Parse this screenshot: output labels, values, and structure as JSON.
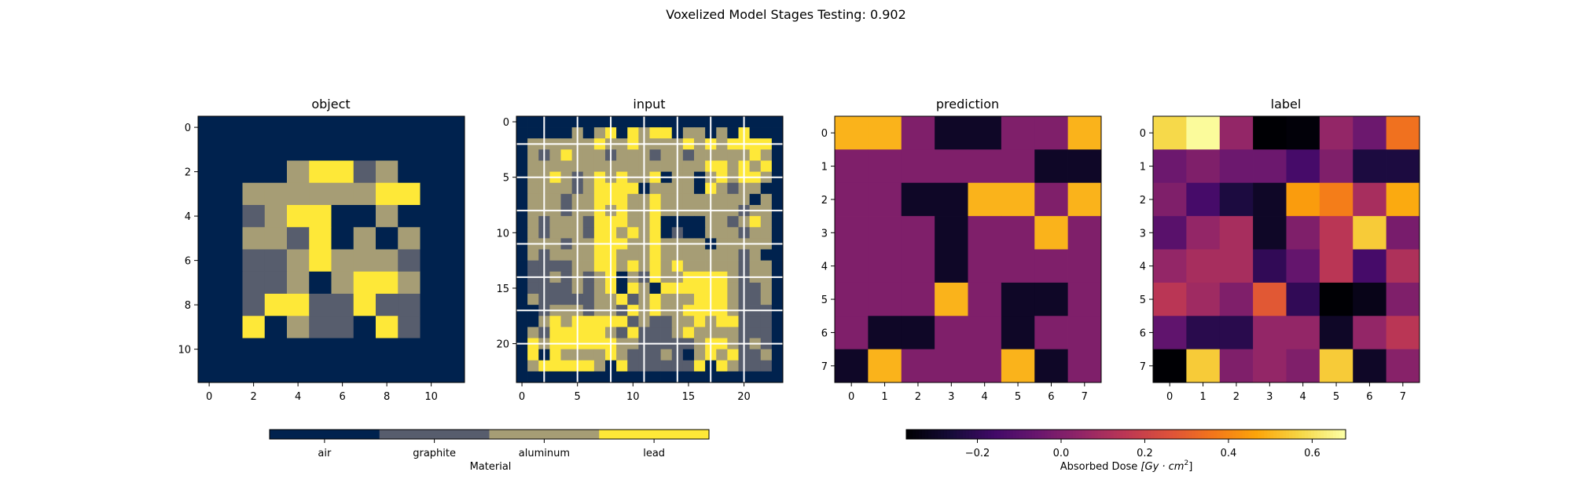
{
  "figure": {
    "suptitle": "Voxelized Model Stages Testing: 0.902"
  },
  "chart_data": [
    {
      "type": "heatmap",
      "title": "object",
      "rows": 12,
      "cols": 12,
      "xticks": [
        0,
        2,
        4,
        6,
        8,
        10
      ],
      "yticks": [
        0,
        2,
        4,
        6,
        8,
        10
      ],
      "colormap": "material",
      "values": [
        [
          0,
          0,
          0,
          0,
          0,
          0,
          0,
          0,
          0,
          0,
          0,
          0
        ],
        [
          0,
          0,
          0,
          0,
          0,
          0,
          0,
          0,
          0,
          0,
          0,
          0
        ],
        [
          0,
          0,
          0,
          0,
          2,
          3,
          3,
          1,
          2,
          0,
          0,
          0
        ],
        [
          0,
          0,
          2,
          2,
          2,
          2,
          2,
          2,
          3,
          3,
          0,
          0
        ],
        [
          0,
          0,
          1,
          2,
          3,
          3,
          0,
          0,
          2,
          0,
          0,
          0
        ],
        [
          0,
          0,
          2,
          2,
          1,
          3,
          0,
          2,
          0,
          2,
          0,
          0
        ],
        [
          0,
          0,
          1,
          1,
          2,
          3,
          2,
          2,
          2,
          1,
          0,
          0
        ],
        [
          0,
          0,
          1,
          1,
          2,
          0,
          2,
          3,
          3,
          2,
          0,
          0
        ],
        [
          0,
          0,
          1,
          3,
          3,
          1,
          1,
          3,
          1,
          1,
          0,
          0
        ],
        [
          0,
          0,
          3,
          0,
          2,
          1,
          1,
          0,
          3,
          1,
          0,
          0
        ],
        [
          0,
          0,
          0,
          0,
          0,
          0,
          0,
          0,
          0,
          0,
          0,
          0
        ],
        [
          0,
          0,
          0,
          0,
          0,
          0,
          0,
          0,
          0,
          0,
          0,
          0
        ]
      ]
    },
    {
      "type": "heatmap",
      "title": "input",
      "rows": 24,
      "cols": 24,
      "xticks": [
        0,
        5,
        10,
        15,
        20
      ],
      "yticks": [
        0,
        5,
        10,
        15,
        20
      ],
      "colormap": "material",
      "grid_every": 3,
      "values": [
        [
          0,
          0,
          0,
          0,
          0,
          0,
          0,
          0,
          0,
          0,
          0,
          0,
          0,
          0,
          0,
          0,
          0,
          0,
          0,
          0,
          0,
          0,
          0,
          0
        ],
        [
          0,
          0,
          0,
          0,
          0,
          2,
          0,
          2,
          3,
          0,
          3,
          2,
          3,
          3,
          0,
          2,
          2,
          0,
          2,
          0,
          3,
          0,
          0,
          0
        ],
        [
          0,
          2,
          2,
          2,
          2,
          2,
          2,
          3,
          2,
          2,
          3,
          2,
          2,
          2,
          2,
          3,
          2,
          3,
          2,
          3,
          3,
          3,
          3,
          0
        ],
        [
          0,
          2,
          1,
          2,
          3,
          2,
          2,
          2,
          1,
          2,
          2,
          2,
          1,
          2,
          2,
          1,
          2,
          2,
          2,
          2,
          2,
          3,
          2,
          0
        ],
        [
          0,
          2,
          2,
          2,
          2,
          2,
          2,
          2,
          2,
          2,
          2,
          2,
          2,
          2,
          2,
          2,
          2,
          3,
          3,
          2,
          3,
          2,
          3,
          0
        ],
        [
          0,
          2,
          2,
          3,
          2,
          1,
          2,
          3,
          2,
          3,
          2,
          2,
          3,
          0,
          2,
          2,
          0,
          2,
          3,
          2,
          3,
          3,
          2,
          0
        ],
        [
          0,
          2,
          2,
          2,
          2,
          1,
          2,
          3,
          3,
          3,
          3,
          0,
          2,
          2,
          2,
          2,
          0,
          3,
          2,
          1,
          2,
          2,
          0,
          0
        ],
        [
          0,
          2,
          2,
          2,
          1,
          2,
          2,
          3,
          3,
          3,
          2,
          2,
          3,
          2,
          2,
          2,
          2,
          2,
          2,
          2,
          2,
          0,
          2,
          0
        ],
        [
          0,
          2,
          2,
          2,
          1,
          2,
          2,
          3,
          2,
          3,
          2,
          2,
          3,
          2,
          2,
          2,
          2,
          2,
          2,
          2,
          1,
          2,
          2,
          0
        ],
        [
          0,
          2,
          1,
          2,
          2,
          2,
          1,
          3,
          3,
          3,
          2,
          2,
          3,
          0,
          0,
          0,
          0,
          2,
          2,
          1,
          2,
          3,
          2,
          0
        ],
        [
          0,
          2,
          1,
          2,
          2,
          2,
          1,
          3,
          3,
          2,
          3,
          2,
          3,
          0,
          1,
          0,
          0,
          2,
          2,
          2,
          1,
          2,
          2,
          0
        ],
        [
          0,
          2,
          2,
          2,
          1,
          2,
          2,
          3,
          3,
          3,
          2,
          2,
          3,
          2,
          2,
          2,
          2,
          0,
          2,
          2,
          2,
          2,
          2,
          0
        ],
        [
          0,
          2,
          1,
          2,
          2,
          2,
          2,
          3,
          3,
          2,
          2,
          2,
          3,
          2,
          2,
          2,
          2,
          2,
          2,
          2,
          1,
          2,
          0,
          0
        ],
        [
          0,
          1,
          1,
          1,
          1,
          2,
          2,
          3,
          3,
          2,
          3,
          2,
          3,
          2,
          3,
          2,
          2,
          2,
          2,
          2,
          1,
          2,
          2,
          0
        ],
        [
          0,
          1,
          1,
          2,
          1,
          2,
          1,
          2,
          3,
          0,
          2,
          1,
          3,
          2,
          2,
          3,
          3,
          3,
          3,
          2,
          1,
          2,
          2,
          0
        ],
        [
          0,
          1,
          1,
          1,
          1,
          2,
          1,
          2,
          3,
          0,
          3,
          2,
          0,
          3,
          3,
          3,
          3,
          3,
          3,
          2,
          1,
          1,
          2,
          0
        ],
        [
          0,
          2,
          1,
          1,
          1,
          1,
          1,
          2,
          2,
          3,
          1,
          2,
          3,
          2,
          2,
          2,
          3,
          3,
          3,
          2,
          1,
          1,
          2,
          0
        ],
        [
          0,
          0,
          1,
          2,
          2,
          2,
          1,
          2,
          2,
          1,
          3,
          2,
          3,
          2,
          2,
          3,
          3,
          3,
          3,
          2,
          1,
          1,
          1,
          0
        ],
        [
          0,
          0,
          2,
          3,
          2,
          3,
          3,
          3,
          3,
          3,
          1,
          2,
          1,
          1,
          2,
          2,
          3,
          2,
          3,
          3,
          1,
          1,
          1,
          0
        ],
        [
          0,
          2,
          1,
          3,
          3,
          3,
          3,
          3,
          2,
          1,
          3,
          1,
          1,
          1,
          2,
          3,
          2,
          2,
          2,
          2,
          1,
          1,
          1,
          0
        ],
        [
          0,
          3,
          2,
          3,
          3,
          3,
          3,
          3,
          3,
          2,
          2,
          1,
          1,
          1,
          1,
          1,
          2,
          3,
          3,
          2,
          1,
          2,
          1,
          0
        ],
        [
          0,
          3,
          0,
          3,
          2,
          2,
          2,
          2,
          3,
          2,
          1,
          1,
          1,
          2,
          1,
          0,
          2,
          3,
          2,
          3,
          1,
          1,
          2,
          0
        ],
        [
          0,
          2,
          3,
          3,
          3,
          3,
          3,
          2,
          0,
          3,
          1,
          1,
          1,
          1,
          1,
          1,
          3,
          0,
          3,
          2,
          1,
          1,
          1,
          0
        ],
        [
          0,
          0,
          0,
          0,
          0,
          0,
          0,
          0,
          0,
          0,
          0,
          0,
          0,
          0,
          0,
          0,
          0,
          0,
          0,
          0,
          0,
          0,
          0,
          0
        ]
      ]
    },
    {
      "type": "heatmap",
      "title": "prediction",
      "rows": 8,
      "cols": 8,
      "xticks": [
        0,
        1,
        2,
        3,
        4,
        5,
        6,
        7
      ],
      "yticks": [
        0,
        1,
        2,
        3,
        4,
        5,
        6,
        7
      ],
      "colormap": "inferno",
      "vmin": -0.37,
      "vmax": 0.68,
      "values": [
        [
          0.5,
          0.5,
          0.0,
          -0.3,
          -0.3,
          0.0,
          0.0,
          0.5
        ],
        [
          0.0,
          0.0,
          0.0,
          0.0,
          0.0,
          0.0,
          -0.3,
          -0.3
        ],
        [
          0.0,
          0.0,
          -0.3,
          -0.3,
          0.5,
          0.5,
          0.0,
          0.5
        ],
        [
          0.0,
          0.0,
          0.0,
          -0.3,
          0.0,
          0.0,
          0.5,
          0.0
        ],
        [
          0.0,
          0.0,
          0.0,
          -0.3,
          0.0,
          0.0,
          0.0,
          0.0
        ],
        [
          0.0,
          0.0,
          0.0,
          0.5,
          0.0,
          -0.3,
          -0.3,
          0.0
        ],
        [
          0.0,
          -0.3,
          -0.3,
          0.0,
          0.0,
          -0.3,
          0.0,
          0.0
        ],
        [
          -0.3,
          0.5,
          0.0,
          0.0,
          0.0,
          0.5,
          -0.3,
          0.0
        ]
      ]
    },
    {
      "type": "heatmap",
      "title": "label",
      "rows": 8,
      "cols": 8,
      "xticks": [
        0,
        1,
        2,
        3,
        4,
        5,
        6,
        7
      ],
      "yticks": [
        0,
        1,
        2,
        3,
        4,
        5,
        6,
        7
      ],
      "colormap": "inferno",
      "vmin": -0.37,
      "vmax": 0.68,
      "values": [
        [
          0.58,
          0.67,
          0.05,
          -0.37,
          -0.36,
          0.05,
          -0.05,
          0.35
        ],
        [
          -0.05,
          0.0,
          -0.05,
          -0.05,
          -0.15,
          0.0,
          -0.25,
          -0.25
        ],
        [
          0.0,
          -0.15,
          -0.25,
          -0.3,
          0.45,
          0.38,
          0.1,
          0.48
        ],
        [
          -0.1,
          0.05,
          0.1,
          -0.3,
          0.0,
          0.15,
          0.55,
          -0.02
        ],
        [
          0.05,
          0.1,
          0.1,
          -0.2,
          -0.07,
          0.15,
          -0.15,
          0.12
        ],
        [
          0.15,
          0.08,
          0.0,
          0.28,
          -0.2,
          -0.37,
          -0.33,
          0.0
        ],
        [
          -0.08,
          -0.22,
          -0.22,
          0.05,
          0.05,
          -0.3,
          0.05,
          0.15
        ],
        [
          -0.37,
          0.55,
          0.0,
          0.05,
          0.0,
          0.55,
          -0.3,
          0.02
        ]
      ]
    }
  ],
  "material_colorbar": {
    "categories": [
      "air",
      "graphite",
      "aluminum",
      "lead"
    ],
    "colors": [
      "#00224e",
      "#575d6d",
      "#a69d75",
      "#fee838"
    ],
    "label": "Material"
  },
  "dose_colorbar": {
    "vmin": -0.37,
    "vmax": 0.68,
    "ticks": [
      -0.2,
      0.0,
      0.2,
      0.4,
      0.6
    ],
    "tick_labels": [
      "−0.2",
      "0.0",
      "0.2",
      "0.4",
      "0.6"
    ],
    "label_main": "Absorbed Dose ",
    "label_unit": "[Gy · cm",
    "label_sup": "2",
    "label_close": "]"
  }
}
